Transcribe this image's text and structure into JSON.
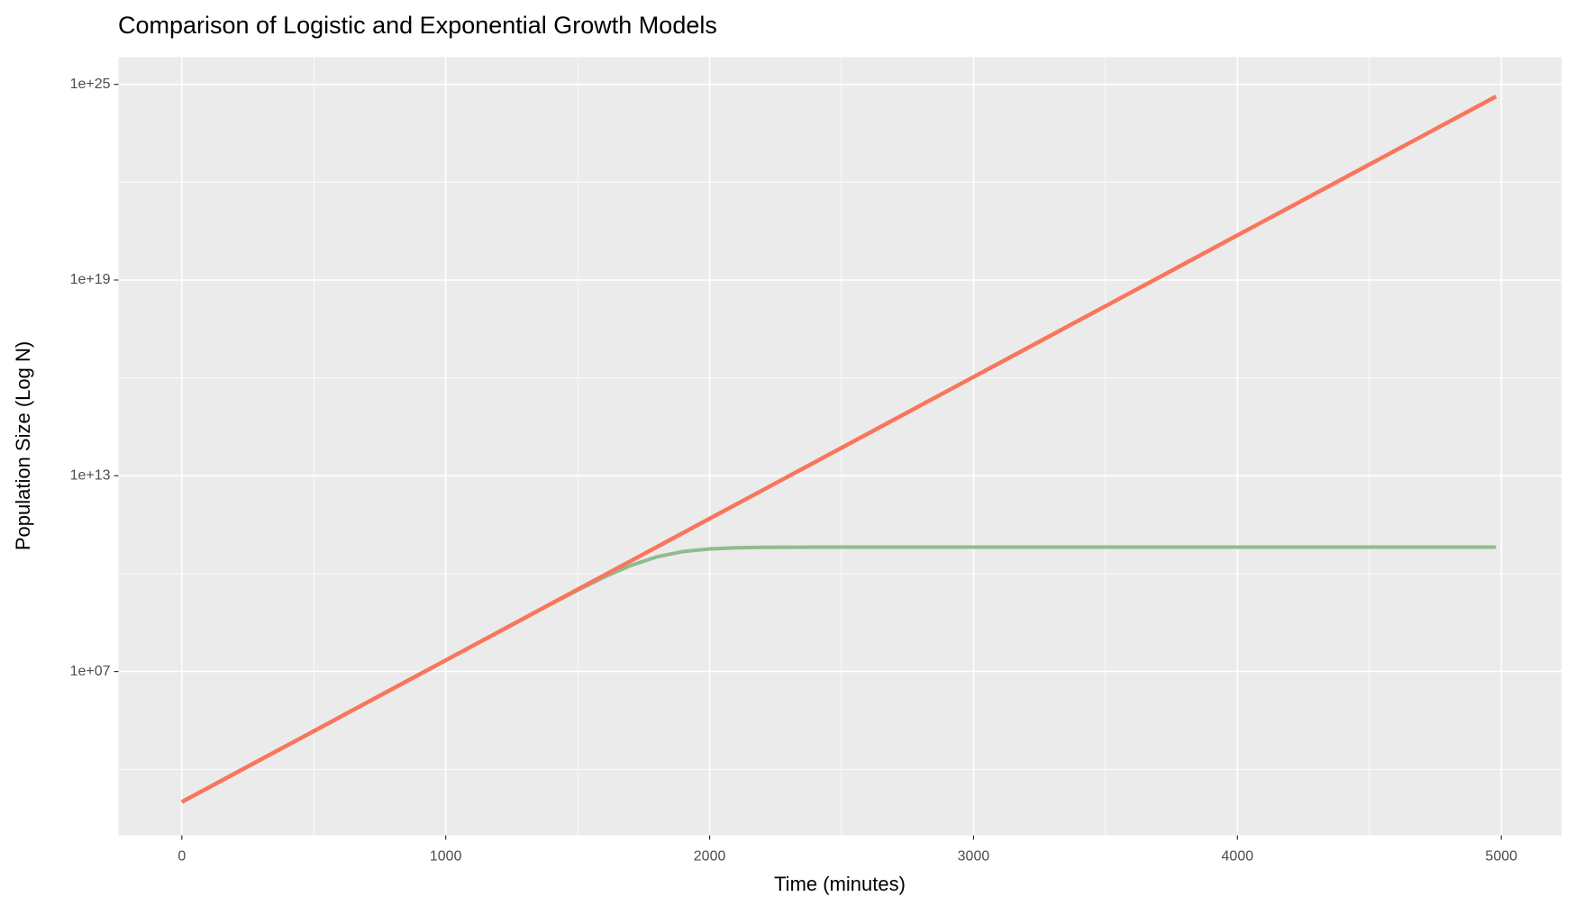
{
  "chart_data": {
    "type": "line",
    "title": "Comparison of Logistic and Exponential Growth Models",
    "x_label": "Time (minutes)",
    "y_label": "Population Size (Log N)",
    "log_y": true,
    "grid": true,
    "background": "#ebebeb",
    "x": [
      0,
      100,
      200,
      300,
      400,
      500,
      600,
      700,
      800,
      900,
      1000,
      1100,
      1200,
      1300,
      1400,
      1500,
      1600,
      1700,
      1800,
      1900,
      2000,
      2100,
      2200,
      2300,
      2400,
      2500,
      2600,
      2700,
      2800,
      2900,
      3000,
      3100,
      3200,
      3300,
      3400,
      3500,
      3600,
      3700,
      3800,
      3900,
      4000,
      4100,
      4200,
      4300,
      4400,
      4500,
      4600,
      4700,
      4800,
      4900,
      4980
    ],
    "series": [
      {
        "color": "#8fbc8f",
        "width": 4,
        "values": [
          1000.0,
          2718.0,
          7389.0,
          20090.0,
          54600.0,
          148400.0,
          403400.0,
          1097000.0,
          2981000.0,
          8103000.0,
          22030000.0,
          59800000.0,
          162400000.0,
          439400000.0,
          1181000000.0,
          3112000000.0,
          7817000000.0,
          17610000000.0,
          32660000000.0,
          47650000000.0,
          57320000000.0,
          61950000000.0,
          63840000000.0,
          64570000000.0,
          64840000000.0,
          64940000000.0,
          64980000000.0,
          64990000000.0,
          65000000000.0,
          65000000000.0,
          65000000000.0,
          65000000000.0,
          65000000000.0,
          65000000000.0,
          65000000000.0,
          65000000000.0,
          65000000000.0,
          65000000000.0,
          65000000000.0,
          65000000000.0,
          65000000000.0,
          65000000000.0,
          65000000000.0,
          65000000000.0,
          65000000000.0,
          65000000000.0,
          65000000000.0,
          65000000000.0,
          65000000000.0,
          65000000000.0,
          65000000000.0
        ]
      },
      {
        "color": "#f8765c",
        "width": 4.5,
        "values": [
          1000.0,
          2718.0,
          7389.0,
          20090.0,
          54600.0,
          148400.0,
          403400.0,
          1097000.0,
          2981000.0,
          8103000.0,
          22030000.0,
          59870000.0,
          162800000.0,
          442400000.0,
          1203000000.0,
          3269000000.0,
          8886000000.0,
          24150000000.0,
          65660000000.0,
          178500000000.0,
          485200000000.0,
          1319000000000.0,
          3584000000000.0,
          9745000000000.0,
          26490000000000.0,
          72000000000000.0,
          195700000000000.0,
          532000000000000.0,
          1446000000000000.0,
          3931000000000000.0,
          1.069e+16,
          2.904e+16,
          7.896e+16,
          2.146e+17,
          5.834e+17,
          1.586e+18,
          4.311e+18,
          1.172e+19,
          3.186e+19,
          8.659e+19,
          2.354e+20,
          6.398e+20,
          1.739e+21,
          4.727e+21,
          1.285e+22,
          3.493e+22,
          9.495e+22,
          2.581e+23,
          7.016e+23,
          1.907e+24,
          4.244e+24
        ]
      }
    ],
    "xlim": [
      -240,
      5228
    ],
    "ylim": [
      95,
      6.8e+25
    ],
    "xticks": [
      0,
      1000,
      2000,
      3000,
      4000,
      5000
    ],
    "xminor_ticks": [
      500,
      1500,
      2500,
      3500,
      4500
    ],
    "yticks": [
      {
        "value": 10000000.0,
        "label": "1e+07"
      },
      {
        "value": 10000000000000.0,
        "label": "1e+13"
      },
      {
        "value": 1e+19,
        "label": "1e+19"
      },
      {
        "value": 1e+25,
        "label": "1e+25"
      }
    ],
    "yminor_ticks": [
      10000.0,
      10000000000.0,
      1e+16,
      1e+22
    ]
  }
}
